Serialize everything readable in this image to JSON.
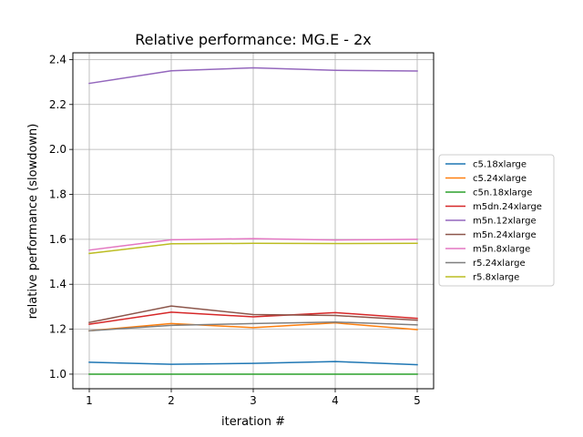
{
  "chart_data": {
    "type": "line",
    "title": "Relative performance: MG.E - 2x",
    "xlabel": "iteration #",
    "ylabel": "relative performance (slowdown)",
    "x": [
      1,
      2,
      3,
      4,
      5
    ],
    "xlim": [
      0.8,
      5.2
    ],
    "ylim": [
      0.935,
      2.43
    ],
    "xticks": [
      1,
      2,
      3,
      4,
      5
    ],
    "yticks": [
      1.0,
      1.2,
      1.4,
      1.6,
      1.8,
      2.0,
      2.2,
      2.4
    ],
    "grid": true,
    "legend_position": "right",
    "series": [
      {
        "name": "c5.18xlarge",
        "color": "#1f77b4",
        "values": [
          1.053,
          1.044,
          1.048,
          1.056,
          1.042
        ]
      },
      {
        "name": "c5.24xlarge",
        "color": "#ff7f0e",
        "values": [
          1.193,
          1.225,
          1.207,
          1.228,
          1.198
        ]
      },
      {
        "name": "c5n.18xlarge",
        "color": "#2ca02c",
        "values": [
          1.0,
          1.0,
          1.0,
          1.0,
          1.0
        ]
      },
      {
        "name": "m5dn.24xlarge",
        "color": "#d62728",
        "values": [
          1.222,
          1.276,
          1.255,
          1.274,
          1.248
        ]
      },
      {
        "name": "m5n.12xlarge",
        "color": "#9467bd",
        "values": [
          2.294,
          2.35,
          2.363,
          2.352,
          2.349
        ]
      },
      {
        "name": "m5n.24xlarge",
        "color": "#8c564b",
        "values": [
          1.23,
          1.303,
          1.265,
          1.261,
          1.24
        ]
      },
      {
        "name": "m5n.8xlarge",
        "color": "#e377c2",
        "values": [
          1.552,
          1.598,
          1.603,
          1.597,
          1.6
        ]
      },
      {
        "name": "r5.24xlarge",
        "color": "#7f7f7f",
        "values": [
          1.193,
          1.217,
          1.225,
          1.232,
          1.219
        ]
      },
      {
        "name": "r5.8xlarge",
        "color": "#bcbd22",
        "values": [
          1.537,
          1.58,
          1.582,
          1.581,
          1.582
        ]
      }
    ]
  }
}
